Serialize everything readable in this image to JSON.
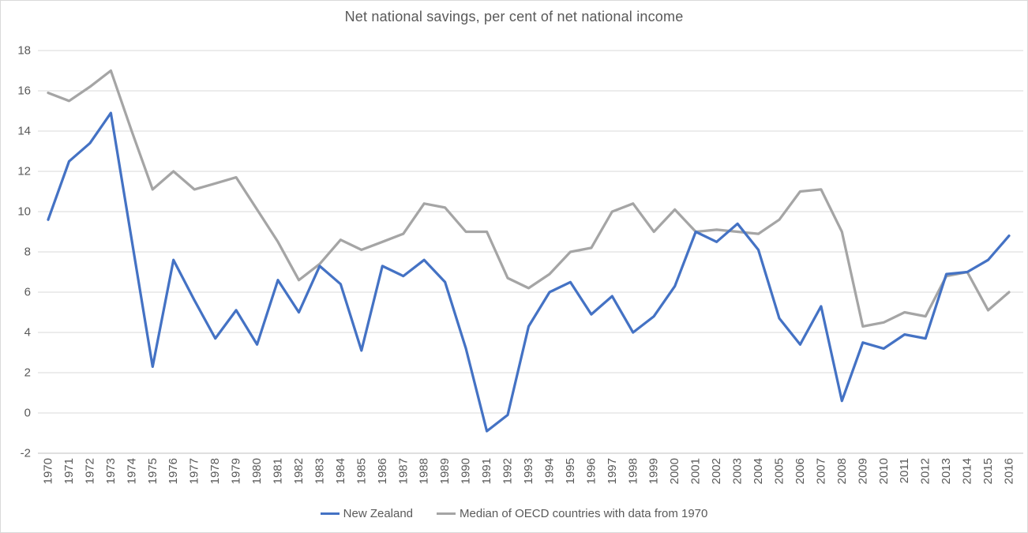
{
  "chart_data": {
    "type": "line",
    "title": "Net national savings, per cent of net national income",
    "x": [
      1970,
      1971,
      1972,
      1973,
      1974,
      1975,
      1976,
      1977,
      1978,
      1979,
      1980,
      1981,
      1982,
      1983,
      1984,
      1985,
      1986,
      1987,
      1988,
      1989,
      1990,
      1991,
      1992,
      1993,
      1994,
      1995,
      1996,
      1997,
      1998,
      1999,
      2000,
      2001,
      2002,
      2003,
      2004,
      2005,
      2006,
      2007,
      2008,
      2009,
      2010,
      2011,
      2012,
      2013,
      2014,
      2015,
      2016
    ],
    "series": [
      {
        "name": "New Zealand",
        "color": "#4472C4",
        "values": [
          9.6,
          12.5,
          13.4,
          14.9,
          8.6,
          2.3,
          7.6,
          5.6,
          3.7,
          5.1,
          3.4,
          6.6,
          5.0,
          7.3,
          6.4,
          3.1,
          7.3,
          6.8,
          7.6,
          6.5,
          3.2,
          -0.9,
          -0.1,
          4.3,
          6.0,
          6.5,
          4.9,
          5.8,
          4.0,
          4.8,
          6.3,
          9.0,
          8.5,
          9.4,
          8.1,
          4.7,
          3.4,
          5.3,
          0.6,
          3.5,
          3.2,
          3.9,
          3.7,
          6.9,
          7.0,
          7.6,
          8.8
        ]
      },
      {
        "name": "Median of OECD countries with data from 1970",
        "color": "#A5A5A5",
        "values": [
          15.9,
          15.5,
          16.2,
          17.0,
          14.0,
          11.1,
          12.0,
          11.1,
          11.4,
          11.7,
          10.1,
          8.5,
          6.6,
          7.4,
          8.6,
          8.1,
          8.5,
          8.9,
          10.4,
          10.2,
          9.0,
          9.0,
          6.7,
          6.2,
          6.9,
          8.0,
          8.2,
          10.0,
          10.4,
          9.0,
          10.1,
          9.0,
          9.1,
          9.0,
          8.9,
          9.6,
          11.0,
          11.1,
          9.0,
          4.3,
          4.5,
          5.0,
          4.8,
          6.8,
          7.0,
          5.1,
          6.0
        ]
      }
    ],
    "ylim": [
      -2,
      18
    ],
    "y_ticks": [
      18,
      16,
      14,
      12,
      10,
      8,
      6,
      4,
      2,
      0,
      -2
    ],
    "xlabel": "",
    "ylabel": "",
    "grid": "horizontal",
    "legend_position": "bottom-center"
  },
  "style": {
    "text_color": "#595959",
    "gridline_color": "#D9D9D9",
    "axis_line_color": "#BFBFBF",
    "background_color": "#FFFFFF"
  }
}
